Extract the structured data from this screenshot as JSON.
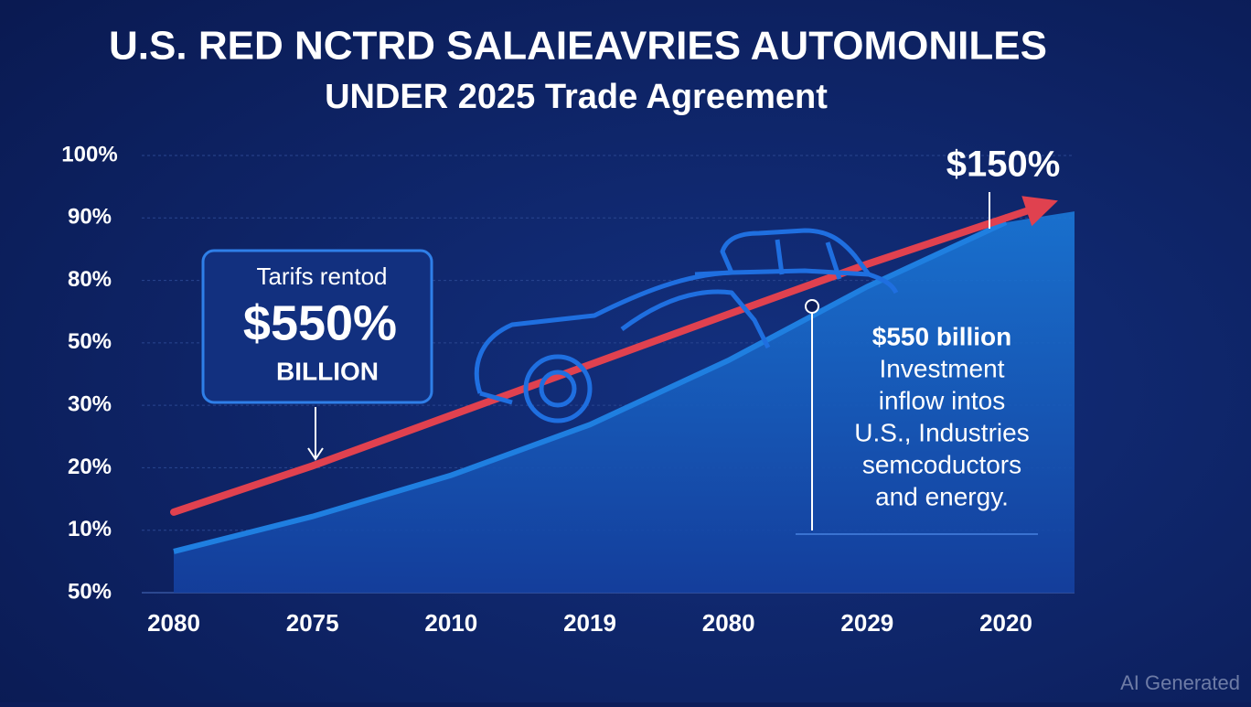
{
  "chart_data": {
    "type": "area-line",
    "title": "U.S. RED NCTRD SALAIEAVRIES AUTOMONILES",
    "subtitle": "UNDER 2025 Trade Agreement",
    "categories": [
      "2080",
      "2075",
      "2010",
      "2019",
      "2080",
      "2029",
      "2020"
    ],
    "ylim": [
      0,
      7
    ],
    "yticks": [
      {
        "value": 0,
        "label": "50%"
      },
      {
        "value": 1,
        "label": "10%"
      },
      {
        "value": 2,
        "label": "20%"
      },
      {
        "value": 3,
        "label": "30%"
      },
      {
        "value": 4,
        "label": "50%"
      },
      {
        "value": 5,
        "label": "80%"
      },
      {
        "value": 6,
        "label": "90%"
      },
      {
        "value": 7,
        "label": "100%"
      }
    ],
    "grid": true,
    "series": [
      {
        "style": "area",
        "color": "#1f7fe0",
        "values": [
          0.66,
          1.22,
          1.88,
          2.69,
          3.72,
          4.9,
          5.93
        ]
      },
      {
        "style": "arrow",
        "color": "#e0414f",
        "values": [
          1.29,
          2.03,
          2.84,
          3.65,
          4.46,
          5.26,
          6.0
        ]
      }
    ],
    "annotations": {
      "box": [
        "Tarifs rentod",
        "$550%",
        "BILLION"
      ],
      "peak": "$150%",
      "note": [
        "$550 billion",
        "Investment",
        "inflow intos",
        "U.S., Industries",
        "semcoductors",
        "and energy."
      ]
    },
    "watermark": "AI Generated"
  }
}
